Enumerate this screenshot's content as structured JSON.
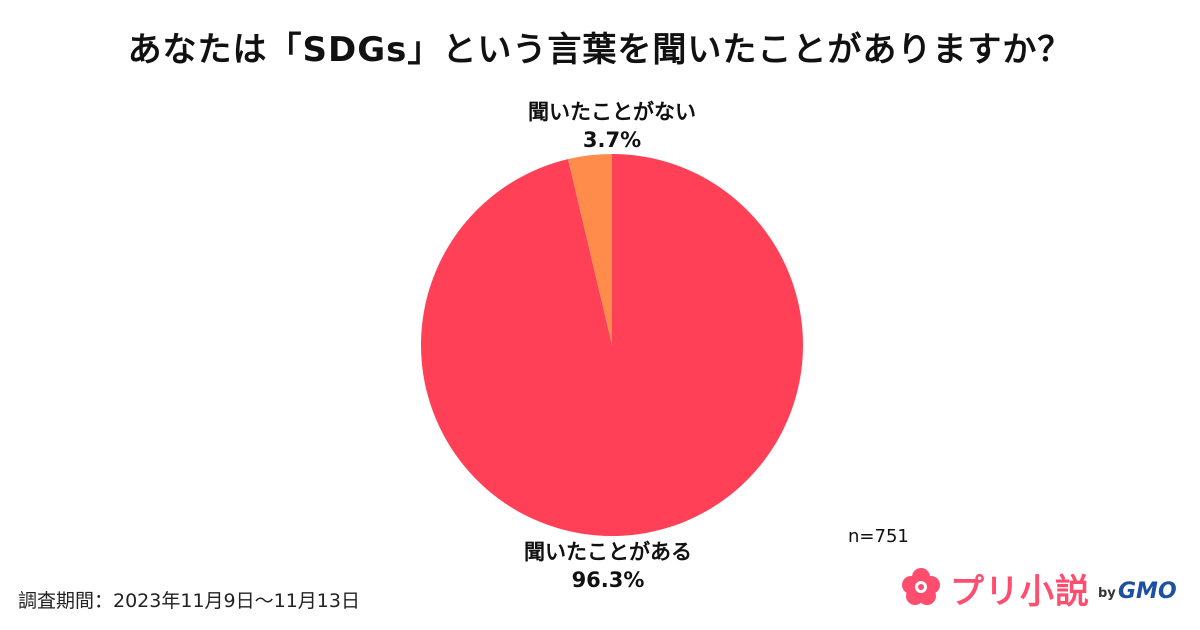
{
  "title": "あなたは「SDGs」という言葉を聞いたことがありますか？",
  "chart_data": {
    "type": "pie",
    "categories": [
      "聞いたことがある",
      "聞いたことがない"
    ],
    "values": [
      96.3,
      3.7
    ],
    "value_labels": [
      "96.3%",
      "3.7%"
    ],
    "colors": [
      "#ff4057",
      "#ff8c4a"
    ],
    "legend": "none"
  },
  "sample_size": "n=751",
  "survey_period": "調査期間：2023年11月9日〜11月13日",
  "logo": {
    "text": "プリ小説",
    "by": "by",
    "company": "GMO",
    "color": "#ff4d6d"
  }
}
